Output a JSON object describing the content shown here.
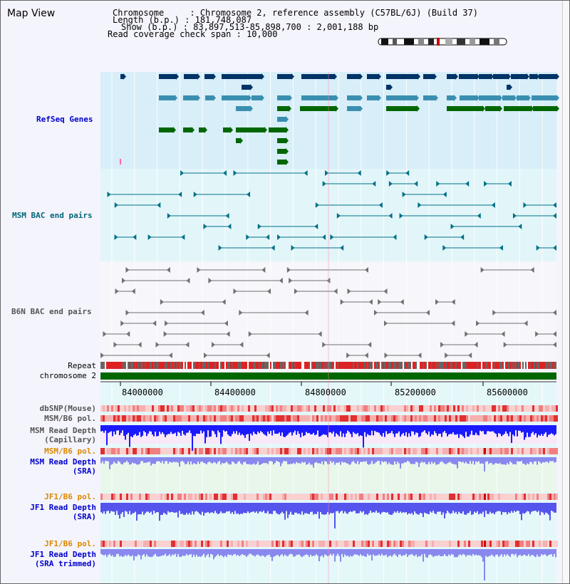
{
  "view": {
    "title": "Map View",
    "info_lines": [
      "Chromosome     : Chromosome 2, reference assembly (C57BL/6J) (Build 37)",
      "Length (b.p.) : 181,748,087",
      "Show (b.p.) : 83,897,513-85,898,700 : 2,001,188 bp",
      "Read coverage check span : 10,000"
    ]
  },
  "tracks": {
    "refseq": "RefSeq Genes",
    "msm_bac": "MSM BAC end pairs",
    "b6n_bac": "B6N BAC end pairs",
    "repeat": "Repeat",
    "chromosome": "chromosome 2",
    "dbsnp": "dbSNP(Mouse)",
    "msm_b6_pol": "MSM/B6 pol.",
    "msm_depth_cap_1": "MSM Read Depth",
    "msm_depth_cap_2": "(Capillary)",
    "msm_b6_pol_sra": "MSM/B6 pol.",
    "msm_depth_sra_1": "MSM Read Depth",
    "msm_depth_sra_2": "(SRA)",
    "jf1_b6_pol": "JF1/B6 pol.",
    "jf1_depth_sra_1": "JF1 Read Depth",
    "jf1_depth_sra_2": "(SRA)",
    "jf1_b6_pol_trim": "JF1/B6 pol.",
    "jf1_depth_trim_1": "JF1 Read Depth",
    "jf1_depth_trim_2": "(SRA trimmed)"
  },
  "axis": {
    "ticks": [
      "84000000",
      "84400000",
      "84800000",
      "85200000",
      "85600000"
    ],
    "range_bp": [
      83897513,
      85898700
    ]
  },
  "colors": {
    "refseq_dark": "#003366",
    "refseq_mid": "#3a8fb0",
    "refseq_green": "#006600",
    "msm_pair": "#007088",
    "b6n_pair": "#707070",
    "chrom_bar": "#006600",
    "depth_blue": "#1a1aff",
    "depth_light": "#6666ff"
  }
}
